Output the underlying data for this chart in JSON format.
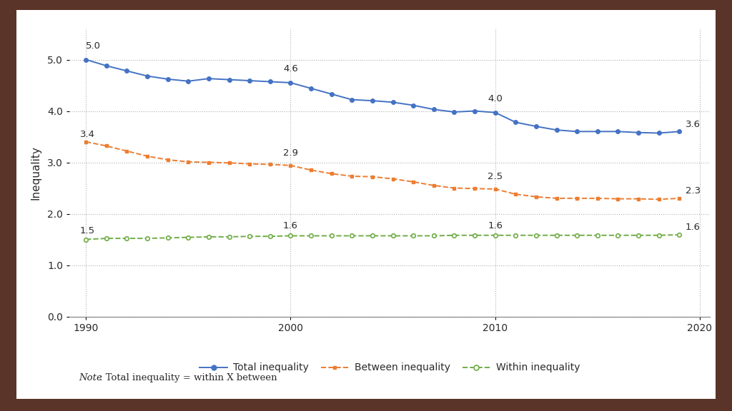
{
  "years": [
    1990,
    1991,
    1992,
    1993,
    1994,
    1995,
    1996,
    1997,
    1998,
    1999,
    2000,
    2001,
    2002,
    2003,
    2004,
    2005,
    2006,
    2007,
    2008,
    2009,
    2010,
    2011,
    2012,
    2013,
    2014,
    2015,
    2016,
    2017,
    2018,
    2019
  ],
  "total": [
    5.0,
    4.88,
    4.78,
    4.68,
    4.62,
    4.58,
    4.63,
    4.61,
    4.59,
    4.57,
    4.55,
    4.44,
    4.33,
    4.22,
    4.2,
    4.17,
    4.11,
    4.03,
    3.98,
    4.0,
    3.97,
    3.78,
    3.7,
    3.63,
    3.6,
    3.6,
    3.6,
    3.58,
    3.57,
    3.6
  ],
  "between": [
    3.4,
    3.32,
    3.22,
    3.12,
    3.05,
    3.01,
    3.0,
    2.99,
    2.97,
    2.96,
    2.94,
    2.85,
    2.78,
    2.73,
    2.72,
    2.68,
    2.62,
    2.55,
    2.5,
    2.49,
    2.48,
    2.38,
    2.33,
    2.3,
    2.3,
    2.3,
    2.29,
    2.29,
    2.28,
    2.3
  ],
  "within": [
    1.5,
    1.52,
    1.52,
    1.52,
    1.53,
    1.54,
    1.55,
    1.55,
    1.56,
    1.56,
    1.57,
    1.57,
    1.57,
    1.57,
    1.57,
    1.57,
    1.57,
    1.57,
    1.58,
    1.58,
    1.58,
    1.58,
    1.58,
    1.58,
    1.58,
    1.58,
    1.58,
    1.58,
    1.58,
    1.59
  ],
  "ann_total": {
    "1990": [
      5.0,
      "left",
      0,
      0.18
    ],
    "2000": [
      4.6,
      "center",
      0,
      0.18
    ],
    "2010": [
      4.0,
      "center",
      0,
      0.18
    ],
    "2019": [
      3.6,
      "left",
      0.3,
      0.05
    ]
  },
  "ann_between": {
    "1990": [
      3.4,
      "left",
      -0.3,
      0.05
    ],
    "2000": [
      2.9,
      "center",
      0,
      0.15
    ],
    "2010": [
      2.5,
      "center",
      0,
      0.15
    ],
    "2019": [
      2.3,
      "left",
      0.3,
      0.05
    ]
  },
  "ann_within": {
    "1990": [
      1.5,
      "left",
      -0.3,
      0.08
    ],
    "2000": [
      1.6,
      "center",
      0,
      0.1
    ],
    "2010": [
      1.6,
      "center",
      0,
      0.1
    ],
    "2019": [
      1.6,
      "left",
      0.3,
      0.05
    ]
  },
  "total_color": "#4472C4",
  "between_color": "#ED7D31",
  "within_color": "#70AD47",
  "ylabel": "Inequality",
  "ylim": [
    0.0,
    5.6
  ],
  "xlim": [
    1989.2,
    2020.5
  ],
  "yticks": [
    0.0,
    1.0,
    2.0,
    3.0,
    4.0,
    5.0
  ],
  "xticks": [
    1990,
    2000,
    2010,
    2020
  ],
  "note_italic": "Note",
  "note_rest": ": Total inequality = within X between",
  "legend_labels": [
    "Total inequality",
    "Between inequality",
    "Within inequality"
  ],
  "background_color": "#ffffff",
  "outer_background": "#5a3428",
  "grid_color": "#b0b0b0",
  "font_color": "#2a2a2a"
}
